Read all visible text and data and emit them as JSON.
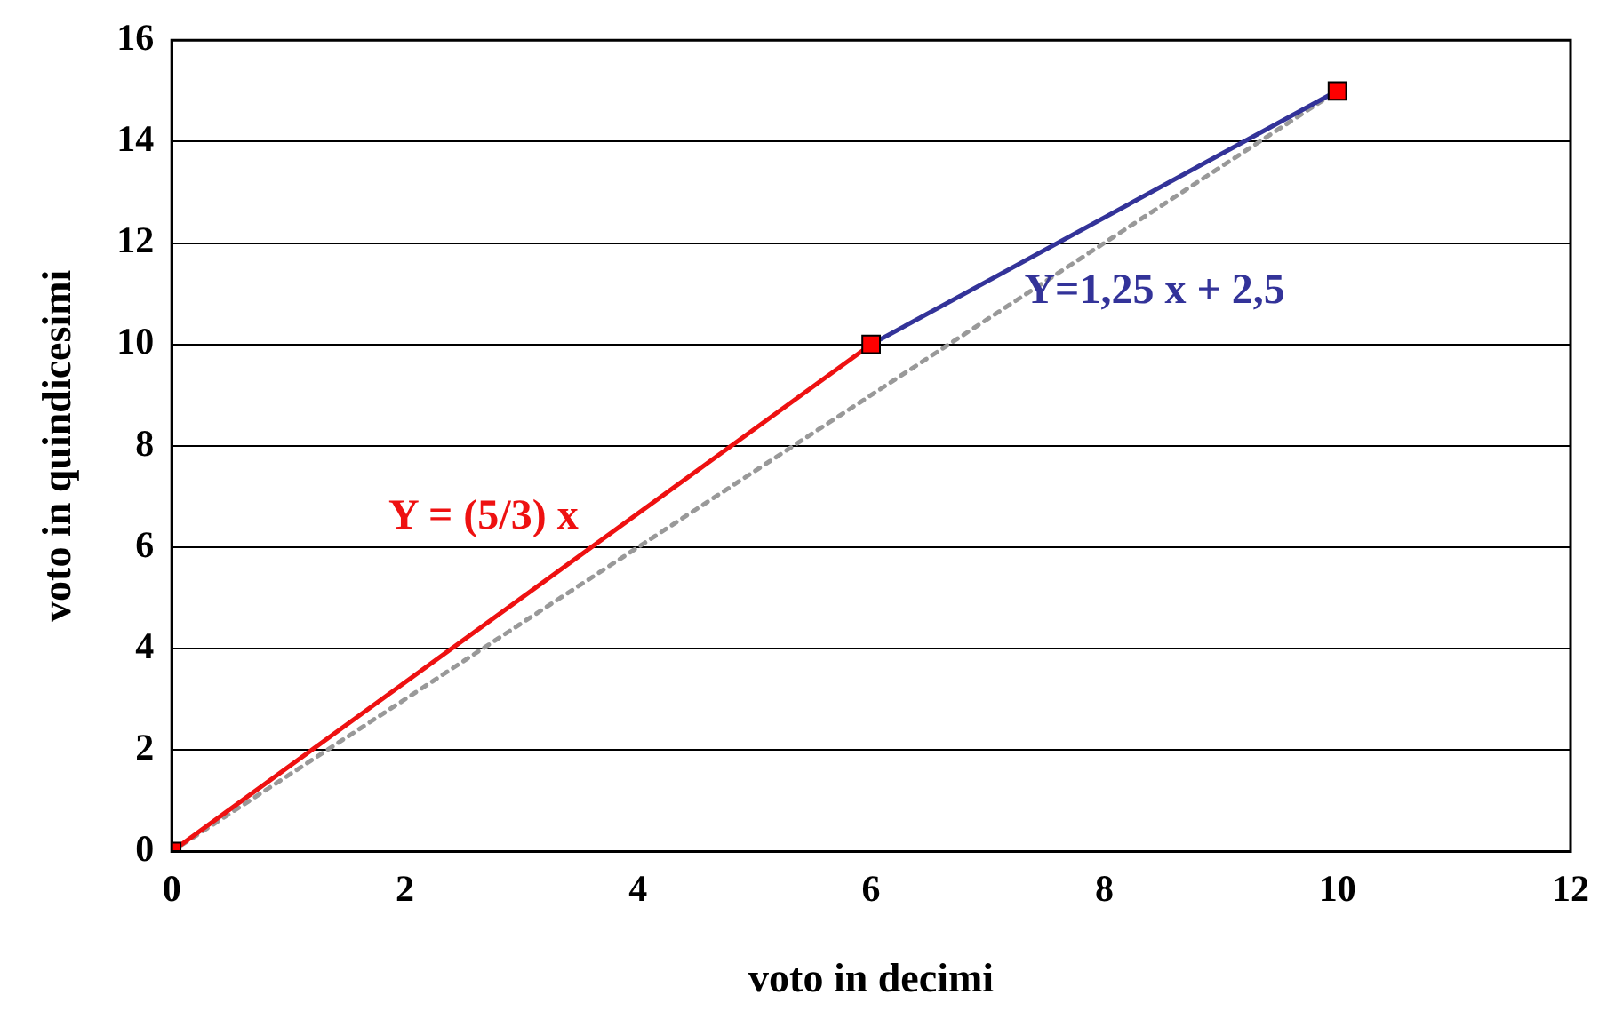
{
  "chart_data": {
    "type": "line",
    "xlabel": "voto in decimi",
    "ylabel": "voto in quindicesimi",
    "xlim": [
      0,
      12
    ],
    "xticks": [
      0,
      2,
      4,
      6,
      8,
      10,
      12
    ],
    "ylim": [
      0,
      16
    ],
    "yticks": [
      0,
      2,
      4,
      6,
      8,
      10,
      12,
      14,
      16
    ],
    "grid": "y",
    "series": [
      {
        "color": "#999999",
        "line_style": "dotted",
        "marker": "none",
        "x": [
          0,
          10
        ],
        "values": [
          0,
          15
        ]
      },
      {
        "name": "Y = (5/3) x",
        "color": "#ee1111",
        "line_style": "solid",
        "marker": "none",
        "x": [
          0,
          6
        ],
        "values": [
          0,
          10
        ]
      },
      {
        "name": "Y=1,25 x + 2,5",
        "color": "#333399",
        "line_style": "solid",
        "marker": "none",
        "x": [
          6,
          10
        ],
        "values": [
          10,
          15
        ]
      },
      {
        "type": "scatter",
        "color": "#ff0000",
        "marker": "square",
        "x": [
          0,
          6,
          10
        ],
        "values": [
          0,
          10,
          15
        ]
      }
    ]
  }
}
